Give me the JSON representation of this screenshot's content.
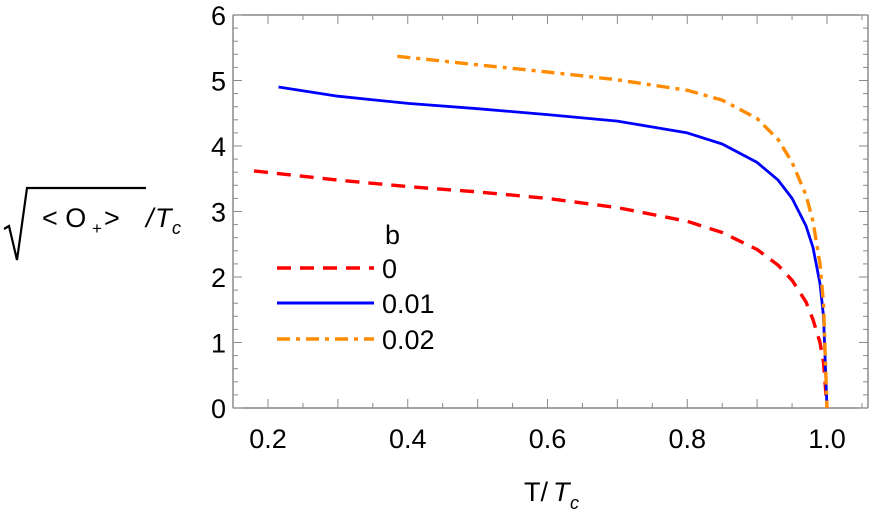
{
  "chart_data": {
    "type": "line",
    "title": "",
    "xlabel": "T/T_c",
    "ylabel": "sqrt(<O_+>)/T_c",
    "xlim": [
      0.15,
      1.06
    ],
    "ylim": [
      0,
      6
    ],
    "x_ticks": [
      "0.2",
      "0.4",
      "0.6",
      "0.8",
      "1.0"
    ],
    "y_ticks": [
      "0",
      "1",
      "2",
      "3",
      "4",
      "5",
      "6"
    ],
    "grid": false,
    "legend": {
      "title": "b",
      "position": "inside-left-middle",
      "entries": [
        "0",
        "0.01",
        "0.02"
      ]
    },
    "series": [
      {
        "name": "0",
        "color": "#ff0000",
        "style": "dashed",
        "x": [
          0.18,
          0.3,
          0.4,
          0.5,
          0.6,
          0.7,
          0.8,
          0.85,
          0.9,
          0.93,
          0.95,
          0.97,
          0.98,
          0.99,
          0.995,
          1.0
        ],
        "y": [
          3.62,
          3.48,
          3.38,
          3.3,
          3.2,
          3.06,
          2.85,
          2.68,
          2.42,
          2.18,
          1.95,
          1.62,
          1.35,
          1.0,
          0.7,
          0.0
        ]
      },
      {
        "name": "0.01",
        "color": "#0000ff",
        "style": "solid",
        "x": [
          0.215,
          0.3,
          0.4,
          0.5,
          0.6,
          0.7,
          0.8,
          0.85,
          0.9,
          0.93,
          0.95,
          0.97,
          0.98,
          0.99,
          0.995,
          1.0
        ],
        "y": [
          4.9,
          4.76,
          4.65,
          4.57,
          4.48,
          4.38,
          4.2,
          4.03,
          3.75,
          3.48,
          3.2,
          2.78,
          2.45,
          1.9,
          1.4,
          0.0
        ]
      },
      {
        "name": "0.02",
        "color": "#ff8c00",
        "style": "dashdot",
        "x": [
          0.385,
          0.5,
          0.6,
          0.7,
          0.8,
          0.85,
          0.9,
          0.93,
          0.95,
          0.97,
          0.98,
          0.99,
          0.995,
          1.0
        ],
        "y": [
          5.37,
          5.24,
          5.13,
          5.01,
          4.85,
          4.7,
          4.42,
          4.1,
          3.75,
          3.25,
          2.85,
          2.2,
          1.6,
          0.0
        ]
      }
    ]
  },
  "labels": {
    "y_axis_main": "< O",
    "y_axis_sub": "+",
    "y_axis_close": " >",
    "y_axis_slash": "/",
    "y_axis_T": "T",
    "y_axis_c": "c",
    "x_axis_T": "T/",
    "x_axis_Titalic": "T",
    "x_axis_c": "c",
    "legend_title": "b"
  }
}
